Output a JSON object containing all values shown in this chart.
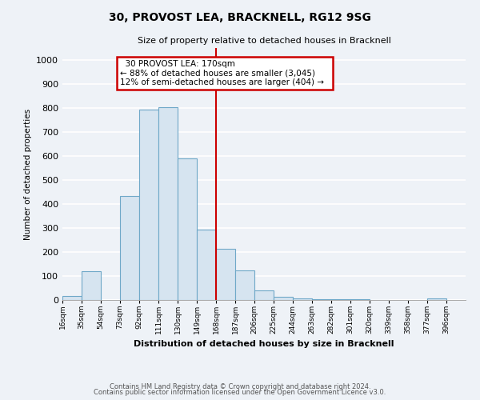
{
  "title": "30, PROVOST LEA, BRACKNELL, RG12 9SG",
  "subtitle": "Size of property relative to detached houses in Bracknell",
  "xlabel": "Distribution of detached houses by size in Bracknell",
  "ylabel": "Number of detached properties",
  "bar_color": "#d6e4f0",
  "bar_edge_color": "#6fa8c8",
  "bin_labels": [
    "16sqm",
    "35sqm",
    "54sqm",
    "73sqm",
    "92sqm",
    "111sqm",
    "130sqm",
    "149sqm",
    "168sqm",
    "187sqm",
    "206sqm",
    "225sqm",
    "244sqm",
    "263sqm",
    "282sqm",
    "301sqm",
    "320sqm",
    "339sqm",
    "358sqm",
    "377sqm",
    "396sqm"
  ],
  "bin_edges": [
    16,
    35,
    54,
    73,
    92,
    111,
    130,
    149,
    168,
    187,
    206,
    225,
    244,
    263,
    282,
    301,
    320,
    339,
    358,
    377,
    396
  ],
  "bar_heights": [
    17,
    120,
    0,
    433,
    793,
    805,
    590,
    293,
    215,
    125,
    40,
    15,
    8,
    5,
    3,
    2,
    1,
    0,
    0,
    7
  ],
  "ylim": [
    0,
    1050
  ],
  "yticks": [
    0,
    100,
    200,
    300,
    400,
    500,
    600,
    700,
    800,
    900,
    1000
  ],
  "property_line_x": 168,
  "property_line_color": "#cc0000",
  "annotation_title": "30 PROVOST LEA: 170sqm",
  "annotation_line1": "← 88% of detached houses are smaller (3,045)",
  "annotation_line2": "12% of semi-detached houses are larger (404) →",
  "annotation_box_color": "#ffffff",
  "annotation_box_edge": "#cc0000",
  "background_color": "#eef2f7",
  "grid_color": "#ffffff",
  "footer_line1": "Contains HM Land Registry data © Crown copyright and database right 2024.",
  "footer_line2": "Contains public sector information licensed under the Open Government Licence v3.0."
}
